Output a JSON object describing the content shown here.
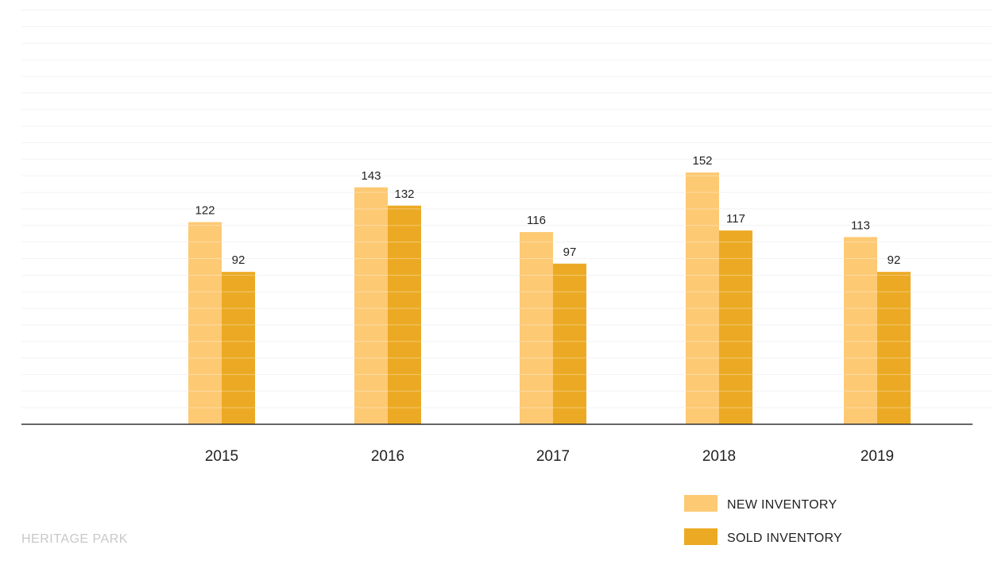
{
  "chart_data": {
    "type": "bar",
    "categories": [
      "2015",
      "2016",
      "2017",
      "2018",
      "2019"
    ],
    "series": [
      {
        "name": "NEW INVENTORY",
        "values": [
          122,
          143,
          116,
          152,
          113
        ],
        "color": "#fdc973"
      },
      {
        "name": "SOLD INVENTORY",
        "values": [
          92,
          132,
          97,
          117,
          92
        ],
        "color": "#ecaa24"
      }
    ],
    "ylim": [
      0,
      255
    ],
    "grid": true,
    "legend_position": "bottom-right",
    "axis_color": "#333333",
    "grid_color": "#f2f2f2"
  },
  "footer": {
    "label": "HERITAGE PARK"
  }
}
